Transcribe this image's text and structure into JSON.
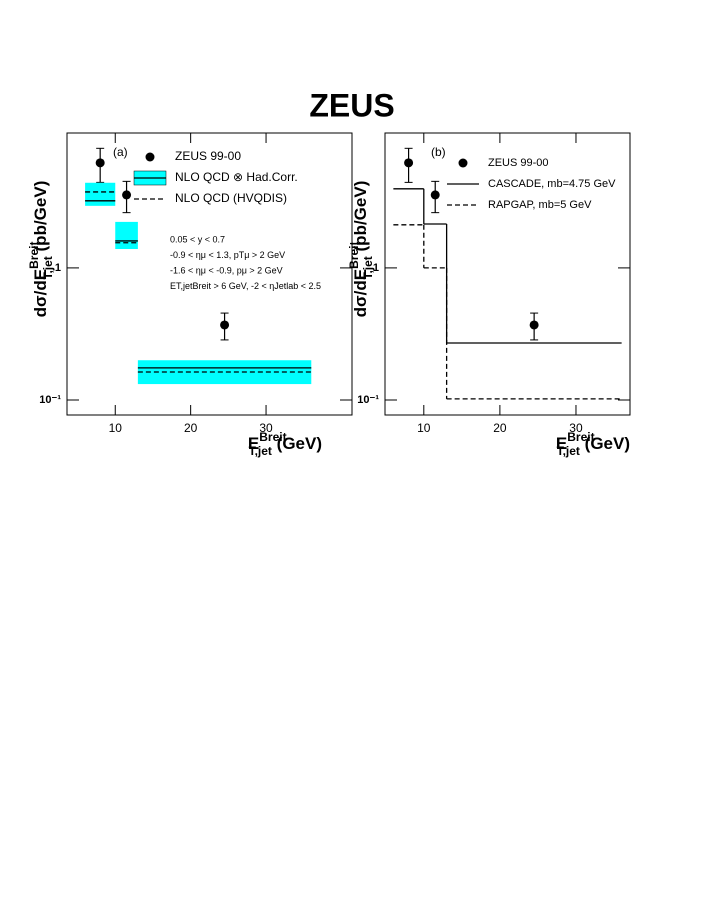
{
  "title": "ZEUS",
  "chart_data": [
    {
      "type": "step-errorbar",
      "panel_label": "(a)",
      "xlabel": {
        "main": "E",
        "sup": "Breit",
        "sub": "T,jet",
        "unit": " (GeV)"
      },
      "ylabel": {
        "main": "dσ/dE",
        "sup": "Breit",
        "sub": "T,jet",
        "unit": " (pb/GeV)"
      },
      "xlim": [
        3.6,
        41.4
      ],
      "xticks": [
        10,
        20,
        30
      ],
      "ylim": [
        0.077,
        10.5
      ],
      "yticks": [
        {
          "value": 0.1,
          "label": "10⁻¹"
        },
        1
      ],
      "log_y": true,
      "bins": [
        6,
        10,
        13,
        36
      ],
      "x": [
        8,
        11.5,
        24.5
      ],
      "series": [
        {
          "name": "ZEUS 99-00",
          "kind": "points",
          "color": "#000000",
          "values": [
            6.24,
            3.57,
            0.37
          ],
          "errors": [
            1.8,
            0.95,
            0.085
          ]
        },
        {
          "name": "NLO QCD ⊗ Had.Corr.",
          "kind": "band",
          "color": "#00ffff",
          "values": [
            3.22,
            1.6,
            0.175
          ],
          "band_low": [
            2.95,
            1.39,
            0.132
          ],
          "band_high": [
            4.41,
            2.23,
            0.2
          ]
        },
        {
          "name": "NLO QCD (HVQDIS)",
          "kind": "dashed",
          "color": "#000000",
          "values": [
            3.76,
            1.55,
            0.163
          ]
        }
      ],
      "annotations": [
        "0.05 < y < 0.7",
        "-0.9 < ημ < 1.3,  pTμ > 2 GeV",
        "-1.6 < ημ < -0.9,  pμ > 2 GeV",
        "ET,jetBreit > 6 GeV, -2 < ηJetlab < 2.5"
      ]
    },
    {
      "type": "step-errorbar",
      "panel_label": "(b)",
      "xlabel": {
        "main": "E",
        "sup": "Breit",
        "sub": "T,jet",
        "unit": " (GeV)"
      },
      "ylabel": {
        "main": "dσ/dE",
        "sup": "Breit",
        "sub": "T,jet",
        "unit": " (pb/GeV)"
      },
      "xlim": [
        4.9,
        37.1
      ],
      "xticks": [
        10,
        20,
        30
      ],
      "ylim": [
        0.077,
        10.5
      ],
      "yticks": [
        {
          "value": 0.1,
          "label": "10⁻¹"
        },
        1
      ],
      "log_y": true,
      "bins": [
        6,
        10,
        13,
        36
      ],
      "x": [
        8,
        11.5,
        24.5
      ],
      "series": [
        {
          "name": "ZEUS 99-00",
          "kind": "points",
          "color": "#000000",
          "values": [
            6.24,
            3.57,
            0.37
          ],
          "errors": [
            1.8,
            0.95,
            0.085
          ]
        },
        {
          "name": "CASCADE, mb=4.75 GeV",
          "kind": "solid",
          "color": "#000000",
          "values": [
            3.97,
            2.15,
            0.27
          ]
        },
        {
          "name": "RAPGAP, mb=5 GeV",
          "kind": "dashed",
          "color": "#000000",
          "values": [
            2.12,
            1.0,
            0.102
          ]
        }
      ]
    }
  ]
}
